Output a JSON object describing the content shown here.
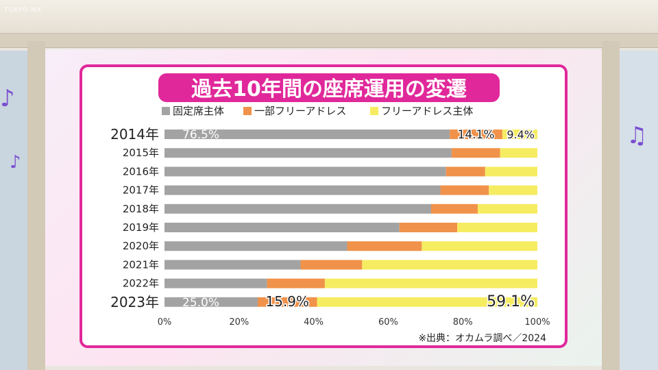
{
  "broadcaster_logo": "TOKYO MX",
  "chart_data": {
    "type": "bar",
    "stacked": true,
    "orientation": "horizontal",
    "title": "過去10年間の座席運用の変遷",
    "categories": [
      "2014年",
      "2015年",
      "2016年",
      "2017年",
      "2018年",
      "2019年",
      "2020年",
      "2021年",
      "2022年",
      "2023年"
    ],
    "series": [
      {
        "name": "固定席主体",
        "color": "#a3a3a3",
        "values": [
          76.5,
          77,
          75.5,
          74,
          71.5,
          63,
          49,
          36.5,
          27.5,
          25.0
        ]
      },
      {
        "name": "一部フリーアドレス",
        "color": "#f0924a",
        "values": [
          14.1,
          13,
          10.5,
          13,
          12.5,
          15.5,
          20,
          16.5,
          15.5,
          15.9
        ]
      },
      {
        "name": "フリーアドレス主体",
        "color": "#f6ec62",
        "values": [
          9.4,
          10,
          14,
          13,
          16,
          21.5,
          31,
          47,
          57,
          59.1
        ]
      }
    ],
    "data_labels": [
      {
        "category": "2014年",
        "series": 0,
        "text": "76.5%"
      },
      {
        "category": "2014年",
        "series": 1,
        "text": "14.1%"
      },
      {
        "category": "2014年",
        "series": 2,
        "text": "9.4%"
      },
      {
        "category": "2023年",
        "series": 0,
        "text": "25.0%"
      },
      {
        "category": "2023年",
        "series": 1,
        "text": "15.9%"
      },
      {
        "category": "2023年",
        "series": 2,
        "text": "59.1%"
      }
    ],
    "xlim": [
      0,
      100
    ],
    "xticks": [
      "0%",
      "20%",
      "40%",
      "60%",
      "80%",
      "100%"
    ],
    "legend_position": "top-left",
    "grid": false,
    "source": "※出典：オカムラ調べ／2024",
    "accent_color": "#e0289a"
  }
}
